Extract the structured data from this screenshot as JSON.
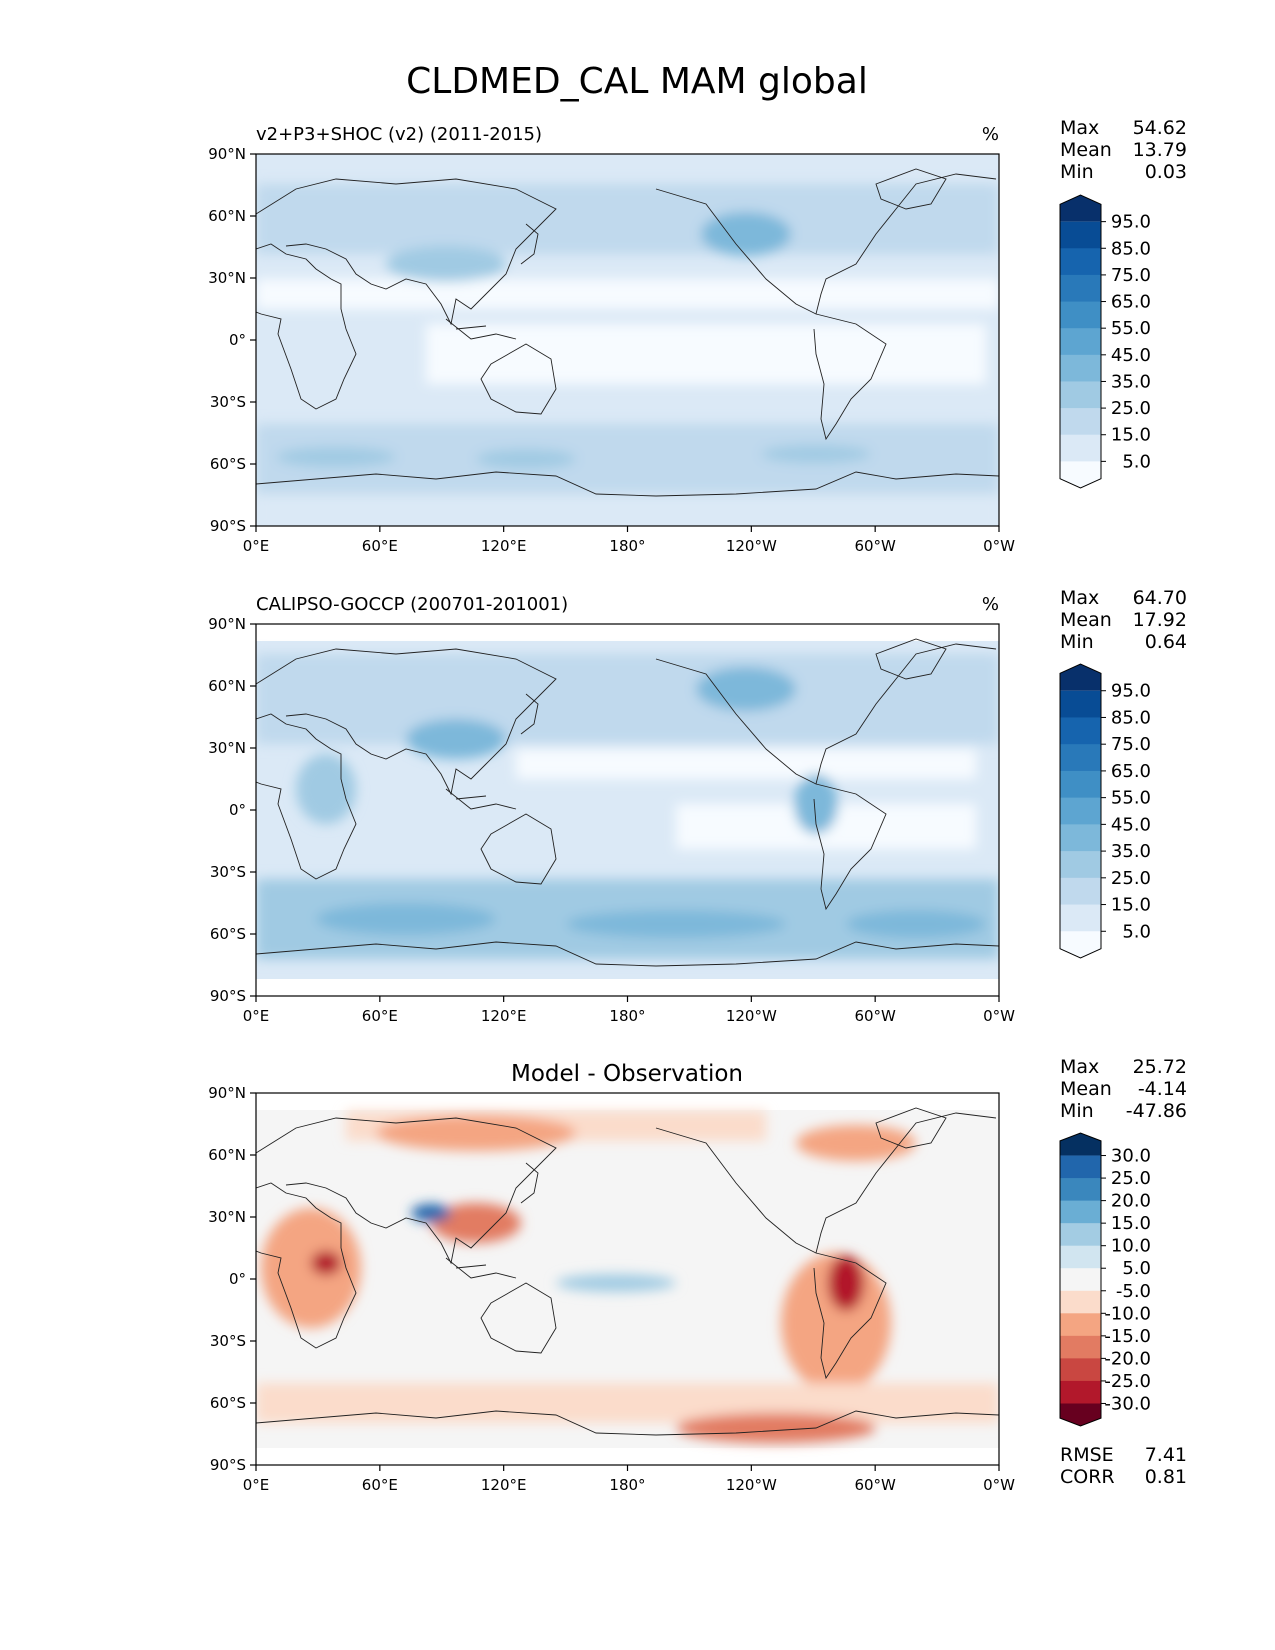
{
  "figure": {
    "title": "CLDMED_CAL MAM global",
    "lat_ticks": [
      "90°N",
      "60°N",
      "30°N",
      "0°",
      "30°S",
      "60°S",
      "90°S"
    ],
    "lon_ticks": [
      "0°E",
      "60°E",
      "120°E",
      "180°",
      "120°W",
      "60°W",
      "0°W"
    ],
    "stat_labels": {
      "max": "Max",
      "mean": "Mean",
      "min": "Min",
      "rmse": "RMSE",
      "corr": "CORR"
    }
  },
  "chart_data": [
    {
      "type": "heatmap",
      "panel": "test",
      "left_title": "v2+P3+SHOC (v2) (2011-2015)",
      "right_title": "%",
      "center_title": "",
      "xlim": [
        0,
        360
      ],
      "ylim": [
        -90,
        90
      ],
      "stats": {
        "max": "54.62",
        "mean": "13.79",
        "min": "0.03"
      },
      "colorbar": {
        "labels": [
          "95.0",
          "85.0",
          "75.0",
          "65.0",
          "55.0",
          "45.0",
          "35.0",
          "25.0",
          "15.0",
          "5.0"
        ],
        "colors": [
          "#08306b",
          "#084c95",
          "#1664ae",
          "#2979b9",
          "#3f8fc5",
          "#5da5d1",
          "#7db8da",
          "#a0cae3",
          "#c0d9ed",
          "#dbe9f6",
          "#f7fbff"
        ]
      }
    },
    {
      "type": "heatmap",
      "panel": "reference",
      "left_title": "CALIPSO-GOCCP (200701-201001)",
      "right_title": "%",
      "center_title": "",
      "xlim": [
        0,
        360
      ],
      "ylim": [
        -90,
        90
      ],
      "stats": {
        "max": "64.70",
        "mean": "17.92",
        "min": "0.64"
      },
      "colorbar": {
        "labels": [
          "95.0",
          "85.0",
          "75.0",
          "65.0",
          "55.0",
          "45.0",
          "35.0",
          "25.0",
          "15.0",
          "5.0"
        ],
        "colors": [
          "#08306b",
          "#084c95",
          "#1664ae",
          "#2979b9",
          "#3f8fc5",
          "#5da5d1",
          "#7db8da",
          "#a0cae3",
          "#c0d9ed",
          "#dbe9f6",
          "#f7fbff"
        ]
      }
    },
    {
      "type": "heatmap",
      "panel": "difference",
      "left_title": "",
      "right_title": "",
      "center_title": "Model - Observation",
      "xlim": [
        0,
        360
      ],
      "ylim": [
        -90,
        90
      ],
      "stats": {
        "max": "25.72",
        "mean": "-4.14",
        "min": "-47.86",
        "rmse": "7.41",
        "corr": "0.81"
      },
      "colorbar": {
        "labels": [
          "30.0",
          "25.0",
          "20.0",
          "15.0",
          "10.0",
          "5.0",
          "-5.0",
          "-10.0",
          "-15.0",
          "-20.0",
          "-25.0",
          "-30.0"
        ],
        "colors": [
          "#053061",
          "#2166ac",
          "#3a87bd",
          "#6aaed4",
          "#a3cce3",
          "#d1e5f0",
          "#f5f5f5",
          "#fbdccb",
          "#f4a582",
          "#e27b62",
          "#c94741",
          "#b2182b",
          "#67001f"
        ]
      }
    }
  ]
}
